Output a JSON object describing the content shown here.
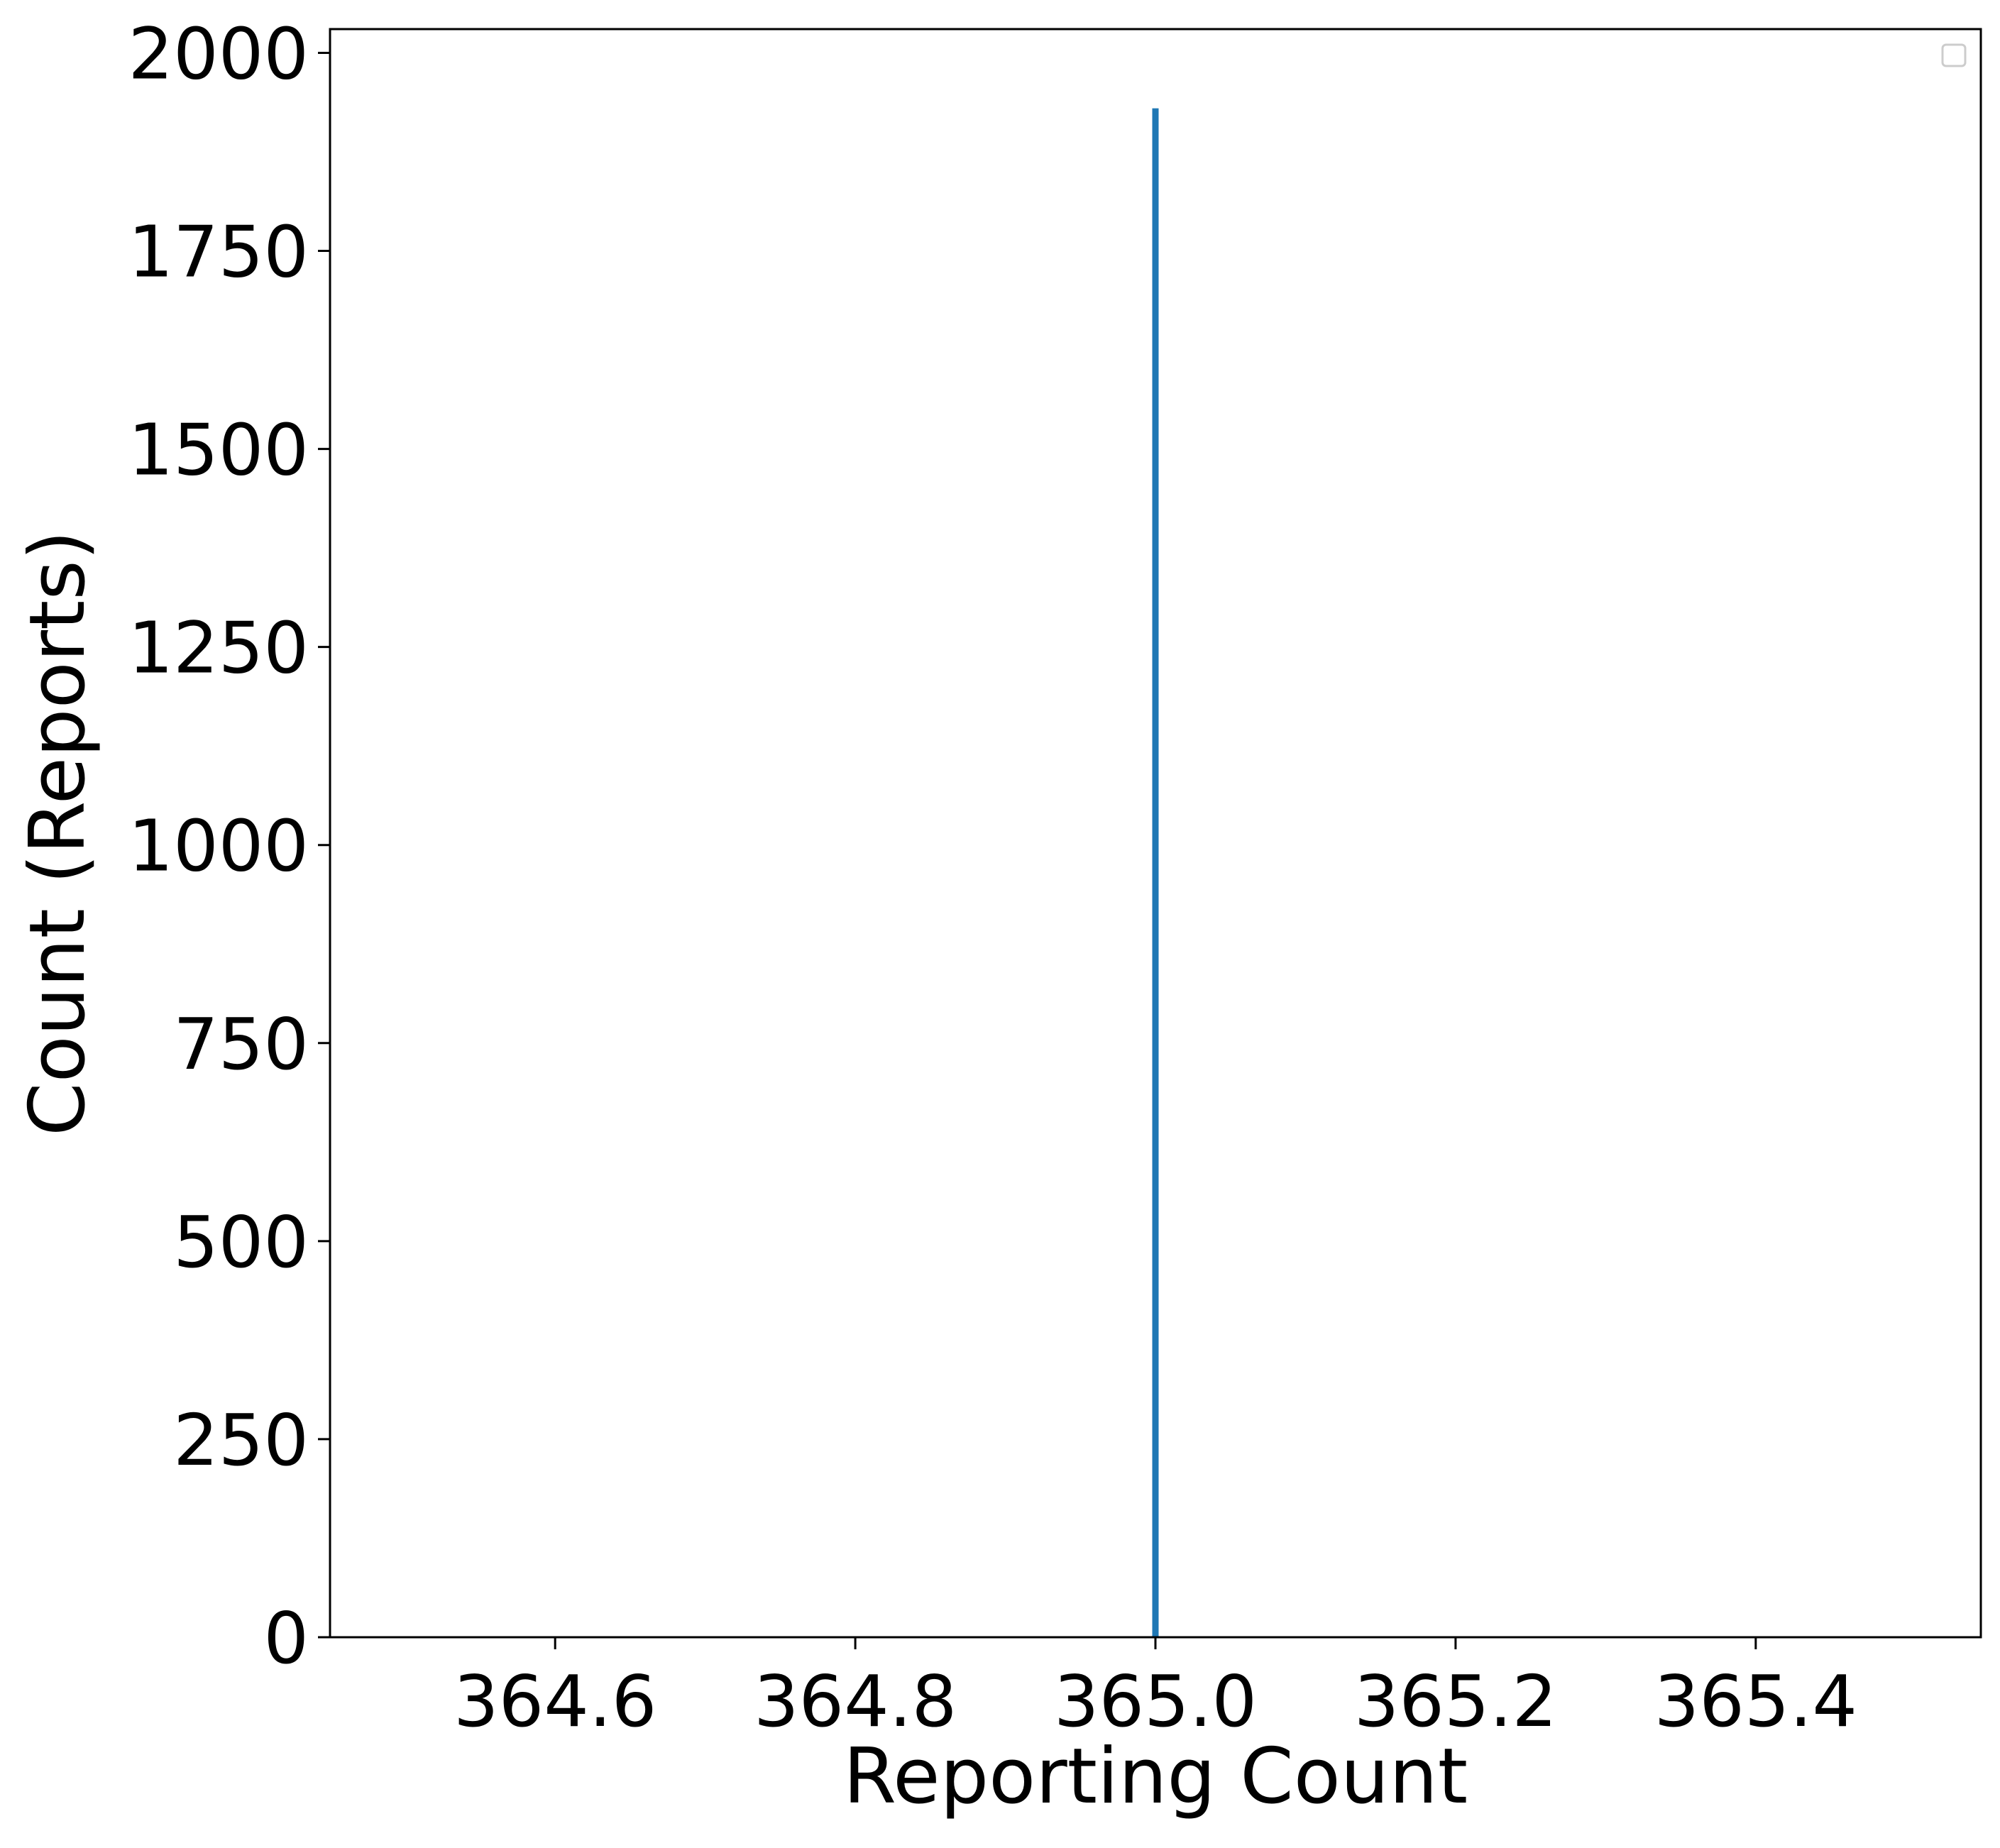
{
  "chart_data": {
    "type": "bar",
    "title": "",
    "xlabel": "Reporting Count",
    "ylabel": "Count (Reports)",
    "xlim": [
      364.45,
      365.55
    ],
    "ylim": [
      0,
      2030
    ],
    "xticks": [
      364.6,
      364.8,
      365.0,
      365.2,
      365.4
    ],
    "xtick_labels": [
      "364.6",
      "364.8",
      "365.0",
      "365.2",
      "365.4"
    ],
    "yticks": [
      0,
      250,
      500,
      750,
      1000,
      1250,
      1500,
      1750,
      2000
    ],
    "ytick_labels": [
      "0",
      "250",
      "500",
      "750",
      "1000",
      "1250",
      "1500",
      "1750",
      "2000"
    ],
    "bars": [
      {
        "x": 365.0,
        "value": 1930
      }
    ],
    "bar_color": "#1f77b4",
    "grid": false,
    "legend": {
      "placement": "top-right",
      "entries": []
    }
  }
}
